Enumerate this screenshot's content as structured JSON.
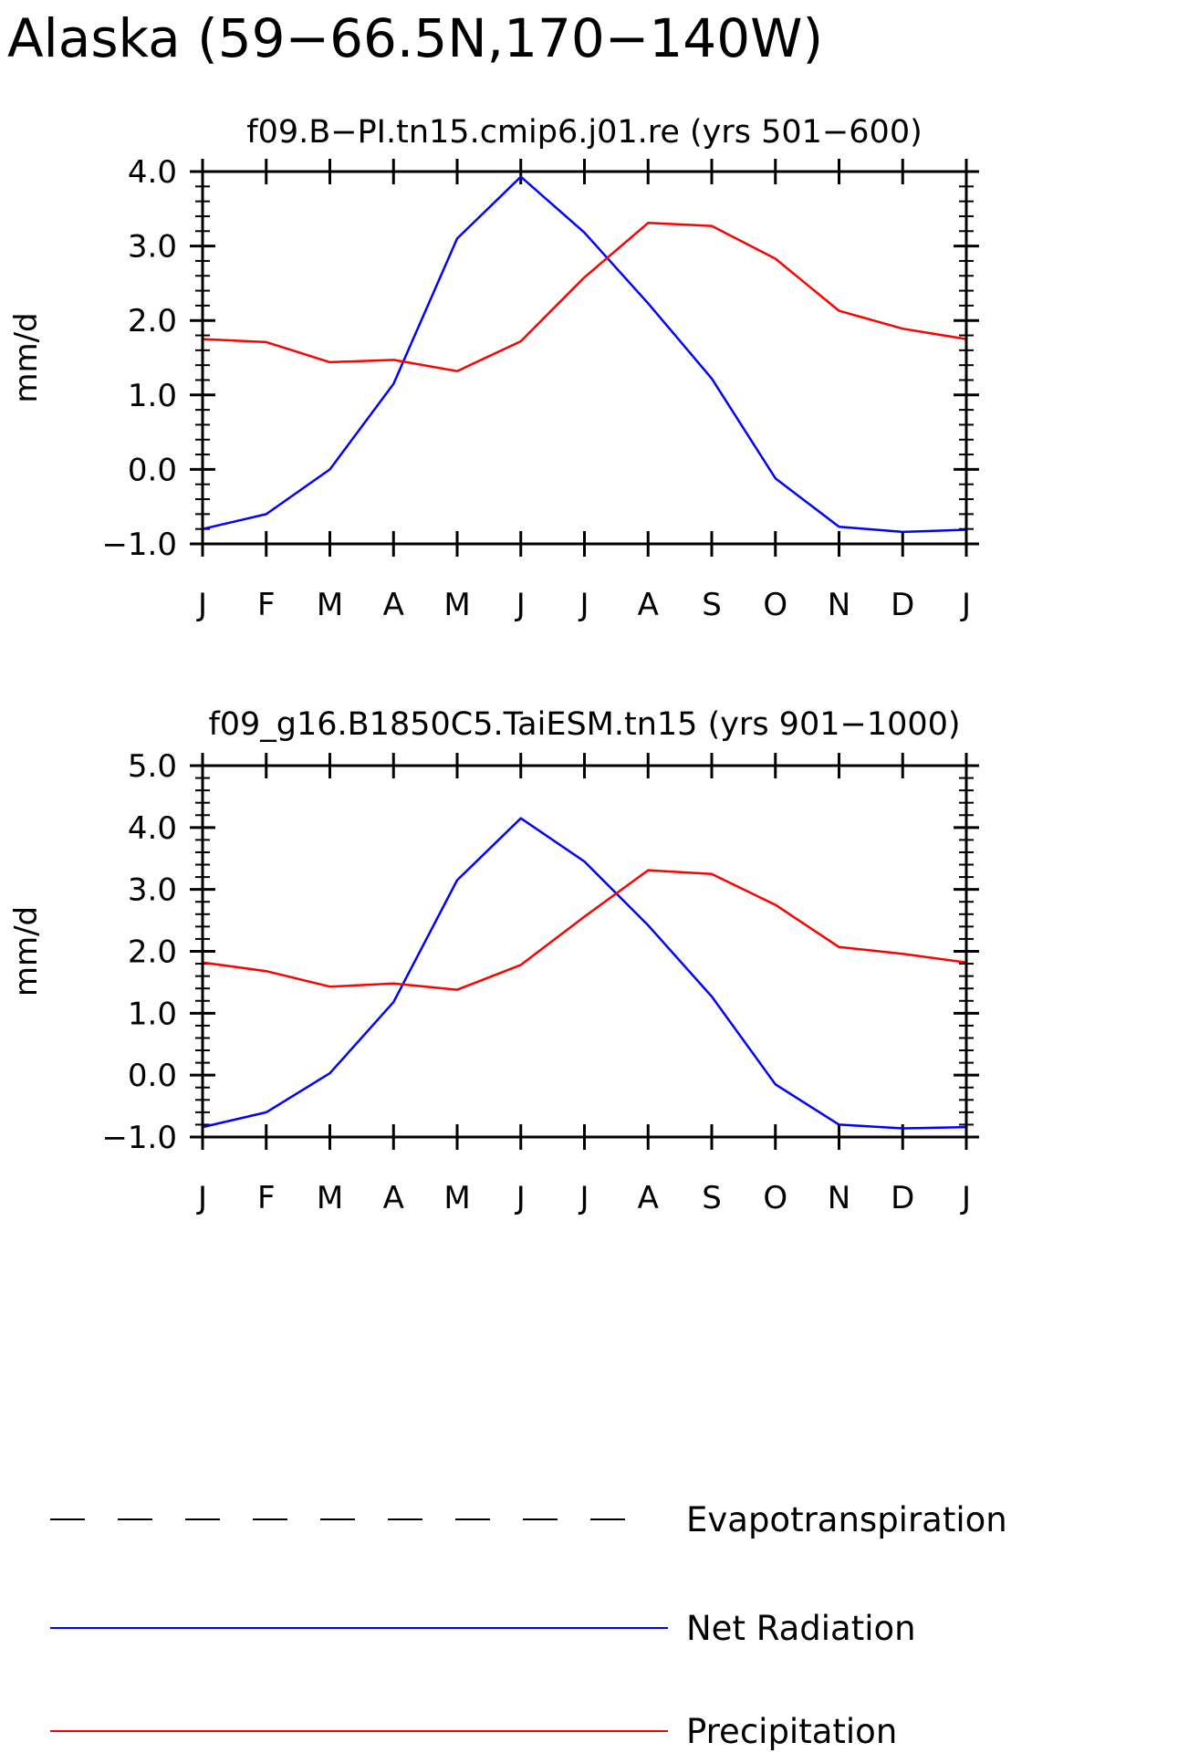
{
  "title": "Alaska (59−66.5N,170−140W)",
  "colors": {
    "Net Radiation": "#0000ff",
    "Precipitation": "#ff0000",
    "Evapotranspiration": "#000000",
    "axes": "#000000"
  },
  "legend": [
    {
      "label": "Evapotranspiration",
      "style": "dashed",
      "color": "#000000"
    },
    {
      "label": "Net Radiation",
      "style": "solid",
      "color": "#0000ff"
    },
    {
      "label": "Precipitation",
      "style": "solid",
      "color": "#ff0000"
    }
  ],
  "chart_data": [
    {
      "type": "line",
      "title": "f09.B−PI.tn15.cmip6.j01.re (yrs 501−600)",
      "ylabel": "mm/d",
      "xlabel": "",
      "ylim": [
        -1.0,
        4.0
      ],
      "yticks": [
        -1.0,
        0.0,
        1.0,
        2.0,
        3.0,
        4.0
      ],
      "ytick_labels": [
        "−1.0",
        "0.0",
        "1.0",
        "2.0",
        "3.0",
        "4.0"
      ],
      "categories": [
        "J",
        "F",
        "M",
        "A",
        "M",
        "J",
        "J",
        "A",
        "S",
        "O",
        "N",
        "D",
        "J"
      ],
      "grid": false,
      "series": [
        {
          "name": "Net Radiation",
          "color": "#0000ff",
          "values": [
            -0.8,
            -0.6,
            0.0,
            1.15,
            3.1,
            3.93,
            3.18,
            2.23,
            1.22,
            -0.12,
            -0.77,
            -0.84,
            -0.81
          ]
        },
        {
          "name": "Precipitation",
          "color": "#ff0000",
          "values": [
            1.75,
            1.71,
            1.44,
            1.47,
            1.32,
            1.72,
            2.58,
            3.31,
            3.27,
            2.83,
            2.13,
            1.89,
            1.75
          ]
        }
      ]
    },
    {
      "type": "line",
      "title": "f09_g16.B1850C5.TaiESM.tn15 (yrs 901−1000)",
      "ylabel": "mm/d",
      "xlabel": "",
      "ylim": [
        -1.0,
        5.0
      ],
      "yticks": [
        -1.0,
        0.0,
        1.0,
        2.0,
        3.0,
        4.0,
        5.0
      ],
      "ytick_labels": [
        "−1.0",
        "0.0",
        "1.0",
        "2.0",
        "3.0",
        "4.0",
        "5.0"
      ],
      "categories": [
        "J",
        "F",
        "M",
        "A",
        "M",
        "J",
        "J",
        "A",
        "S",
        "O",
        "N",
        "D",
        "J"
      ],
      "grid": false,
      "series": [
        {
          "name": "Net Radiation",
          "color": "#0000ff",
          "values": [
            -0.84,
            -0.6,
            0.03,
            1.18,
            3.15,
            4.15,
            3.45,
            2.42,
            1.27,
            -0.15,
            -0.8,
            -0.86,
            -0.84
          ]
        },
        {
          "name": "Precipitation",
          "color": "#ff0000",
          "values": [
            1.82,
            1.68,
            1.43,
            1.48,
            1.38,
            1.78,
            2.56,
            3.31,
            3.25,
            2.75,
            2.07,
            1.96,
            1.82
          ]
        }
      ]
    }
  ]
}
